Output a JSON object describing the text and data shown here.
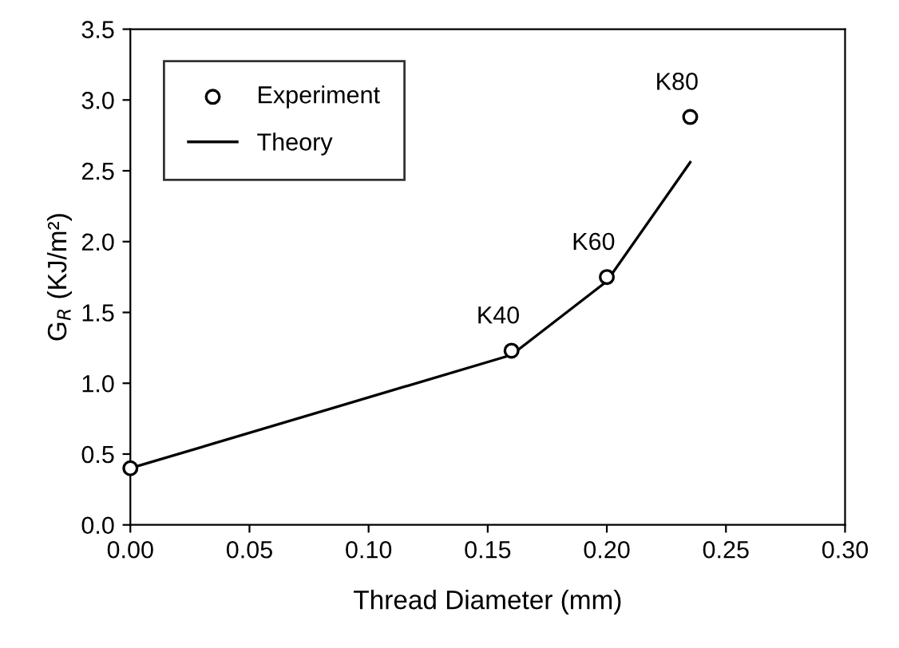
{
  "chart_data": {
    "type": "line",
    "xlabel": "Thread Diameter (mm)",
    "ylabel": "G$_{R}$ (KJ/m²)",
    "series": [
      {
        "name": "Experiment",
        "type": "scatter",
        "color": "#000000",
        "marker": "circle",
        "x": [
          0.0,
          0.16,
          0.2,
          0.235
        ],
        "values": [
          0.4,
          1.23,
          1.75,
          2.88
        ]
      },
      {
        "name": "Theory",
        "color": "#000000",
        "line_style": "solid",
        "x": [
          0.0,
          0.16,
          0.2,
          0.235
        ],
        "values": [
          0.4,
          1.2,
          1.72,
          2.56
        ]
      }
    ],
    "annotations": [
      {
        "text": "K40",
        "x": 0.16,
        "y": 1.23
      },
      {
        "text": "K60",
        "x": 0.2,
        "y": 1.75
      },
      {
        "text": "K80",
        "x": 0.235,
        "y": 2.88
      }
    ],
    "xlim": [
      0.0,
      0.3
    ],
    "xticks": [
      {
        "value": 0,
        "label": "0.00"
      },
      0.05,
      {
        "value": 0.1,
        "label": "0.10"
      },
      0.15,
      {
        "value": 0.2,
        "label": "0.20"
      },
      0.25,
      {
        "value": 0.3,
        "label": "0.30"
      }
    ],
    "ylim": [
      0.0,
      3.5
    ],
    "yticks": [
      {
        "value": 0,
        "label": "0.0"
      },
      0.5,
      {
        "value": 1,
        "label": "1.0"
      },
      1.5,
      {
        "value": 2,
        "label": "2.0"
      },
      2.5,
      {
        "value": 3,
        "label": "3.0"
      },
      3.5
    ],
    "grid": false,
    "legend": "top left"
  }
}
